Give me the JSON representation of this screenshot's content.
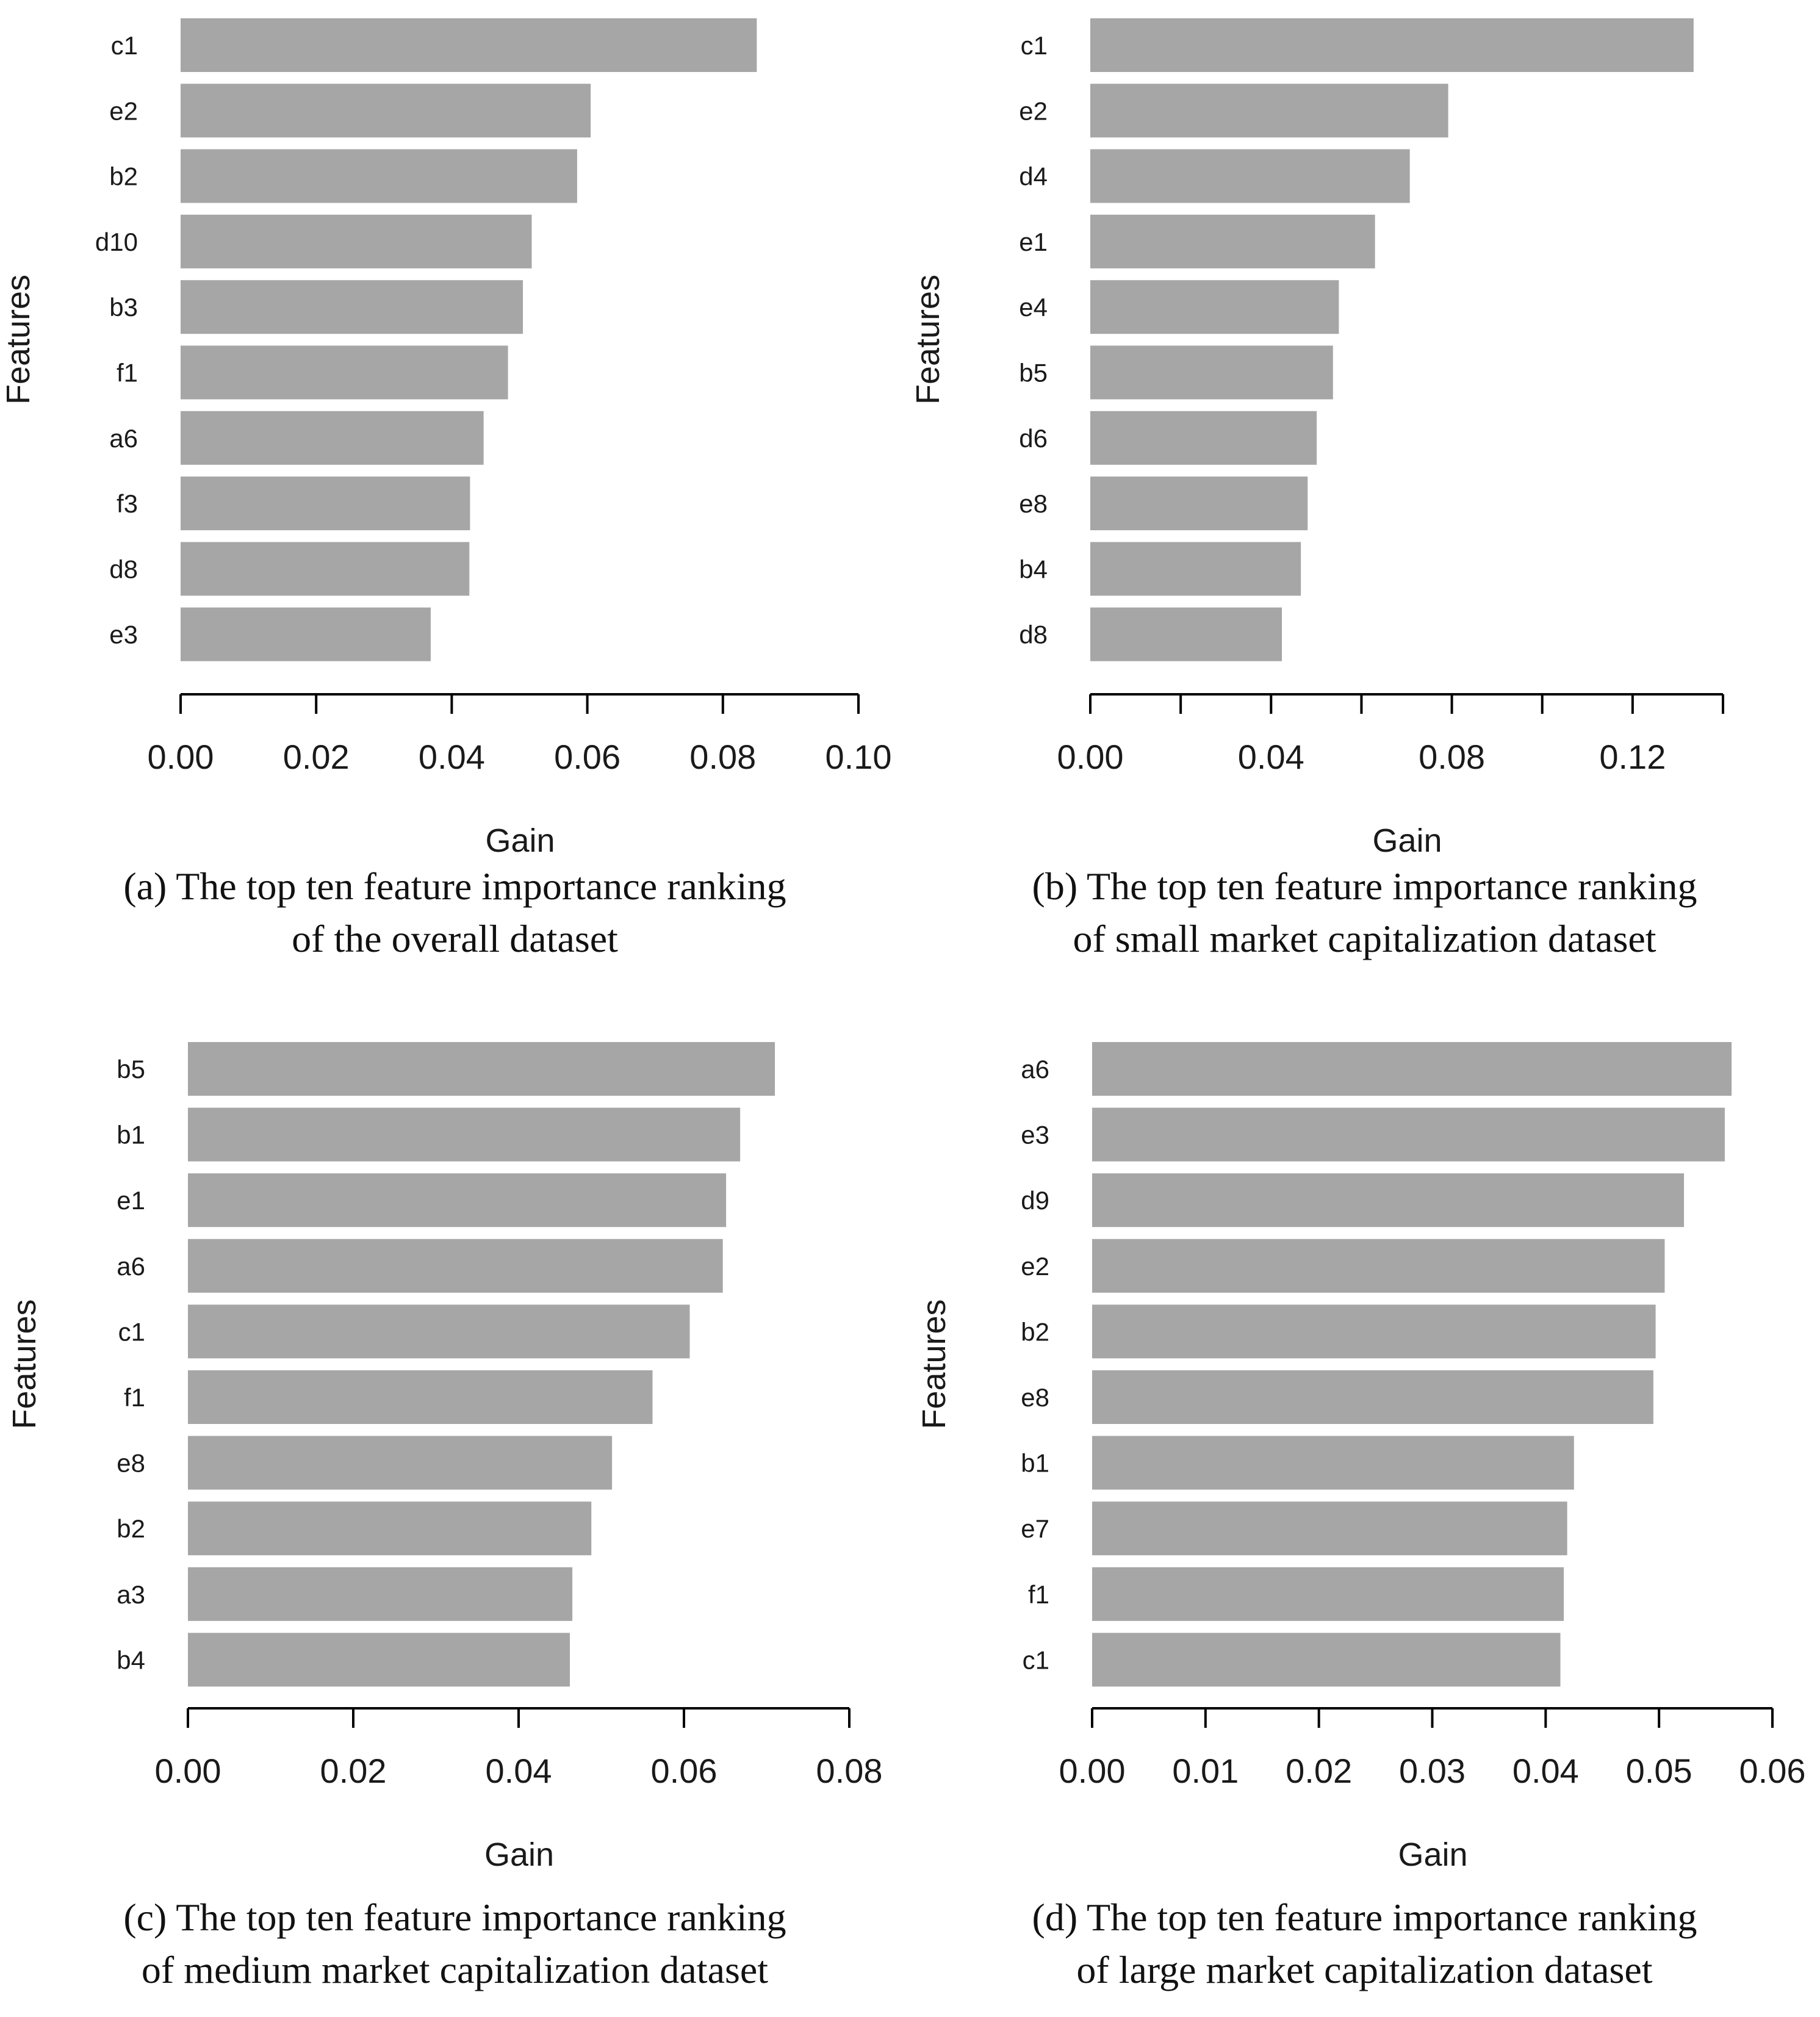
{
  "chart_data": [
    {
      "id": "a",
      "type": "bar",
      "orientation": "horizontal",
      "categories": [
        "c1",
        "e2",
        "b2",
        "d10",
        "b3",
        "f1",
        "a6",
        "f3",
        "d8",
        "e3"
      ],
      "values": [
        0.085,
        0.0605,
        0.0585,
        0.0518,
        0.0505,
        0.0483,
        0.0447,
        0.0427,
        0.0426,
        0.0369
      ],
      "xlim": [
        0,
        0.1
      ],
      "ticks": [
        0.0,
        0.02,
        0.04,
        0.06,
        0.08,
        0.1
      ],
      "tick_labels": [
        "0.00",
        "0.02",
        "0.04",
        "0.06",
        "0.08",
        "0.10"
      ],
      "xlabel": "Gain",
      "ylabel": "Features",
      "caption_line1": "(a) The top ten feature importance ranking",
      "caption_line2": "of the overall dataset"
    },
    {
      "id": "b",
      "type": "bar",
      "orientation": "horizontal",
      "categories": [
        "c1",
        "e2",
        "d4",
        "e1",
        "e4",
        "b5",
        "d6",
        "e8",
        "b4",
        "d8"
      ],
      "values": [
        0.1335,
        0.0792,
        0.0707,
        0.063,
        0.055,
        0.0537,
        0.0501,
        0.0481,
        0.0466,
        0.0424
      ],
      "xlim": [
        0,
        0.14
      ],
      "ticks": [
        0.0,
        0.02,
        0.04,
        0.06,
        0.08,
        0.1,
        0.12,
        0.14
      ],
      "tick_labels": [
        "0.00",
        "",
        "0.04",
        "",
        "0.08",
        "",
        "0.12",
        ""
      ],
      "xlabel": "Gain",
      "ylabel": "Features",
      "caption_line1": "(b) The top ten feature importance ranking",
      "caption_line2": "of small market capitalization dataset"
    },
    {
      "id": "c",
      "type": "bar",
      "orientation": "horizontal",
      "categories": [
        "b5",
        "b1",
        "e1",
        "a6",
        "c1",
        "f1",
        "e8",
        "b2",
        "a3",
        "b4"
      ],
      "values": [
        0.071,
        0.0668,
        0.0651,
        0.0647,
        0.0607,
        0.0562,
        0.0513,
        0.0488,
        0.0465,
        0.0462
      ],
      "xlim": [
        0,
        0.08
      ],
      "ticks": [
        0.0,
        0.02,
        0.04,
        0.06,
        0.08
      ],
      "tick_labels": [
        "0.00",
        "0.02",
        "0.04",
        "0.06",
        "0.08"
      ],
      "xlabel": "Gain",
      "ylabel": "Features",
      "caption_line1": "(c) The top ten feature importance ranking",
      "caption_line2": "of medium market capitalization dataset"
    },
    {
      "id": "d",
      "type": "bar",
      "orientation": "horizontal",
      "categories": [
        "a6",
        "e3",
        "d9",
        "e2",
        "b2",
        "e8",
        "b1",
        "e7",
        "f1",
        "c1"
      ],
      "values": [
        0.0564,
        0.0558,
        0.0522,
        0.0505,
        0.0497,
        0.0495,
        0.0425,
        0.0419,
        0.0416,
        0.0413
      ],
      "xlim": [
        0,
        0.06
      ],
      "ticks": [
        0.0,
        0.01,
        0.02,
        0.03,
        0.04,
        0.05,
        0.06
      ],
      "tick_labels": [
        "0.00",
        "0.01",
        "0.02",
        "0.03",
        "0.04",
        "0.05",
        "0.06"
      ],
      "xlabel": "Gain",
      "ylabel": "Features",
      "caption_line1": "(d) The top ten feature importance ranking",
      "caption_line2": "of large market capitalization dataset"
    }
  ]
}
